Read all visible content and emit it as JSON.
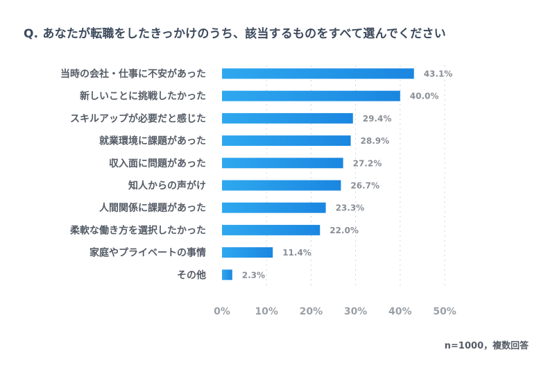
{
  "title": "Q. あなたが転職をしたきっかけのうち、該当するものをすべて選んでください",
  "note": "n=1000，複数回答",
  "colors": {
    "bar_start": "#2fa8ef",
    "bar_end": "#1a86e0",
    "grid": "#cfd4da"
  },
  "chart_data": {
    "type": "bar",
    "orientation": "horizontal",
    "categories": [
      "当時の会社・仕事に不安があった",
      "新しいことに挑戦したかった",
      "スキルアップが必要だと感じた",
      "就業環境に課題があった",
      "収入面に問題があった",
      "知人からの声がけ",
      "人間関係に課題があった",
      "柔軟な働き方を選択したかった",
      "家庭やプライベートの事情",
      "その他"
    ],
    "values": [
      43.1,
      40.0,
      29.4,
      28.9,
      27.2,
      26.7,
      23.3,
      22.0,
      11.4,
      2.3
    ],
    "value_labels": [
      "43.1%",
      "40.0%",
      "29.4%",
      "28.9%",
      "27.2%",
      "26.7%",
      "23.3%",
      "22.0%",
      "11.4%",
      "2.3%"
    ],
    "xlim": [
      0,
      50
    ],
    "xticks": [
      0,
      10,
      20,
      30,
      40,
      50
    ],
    "xtick_labels": [
      "0%",
      "10%",
      "20%",
      "30%",
      "40%",
      "50%"
    ],
    "grid": "vertical-dotted",
    "legend": "none"
  }
}
